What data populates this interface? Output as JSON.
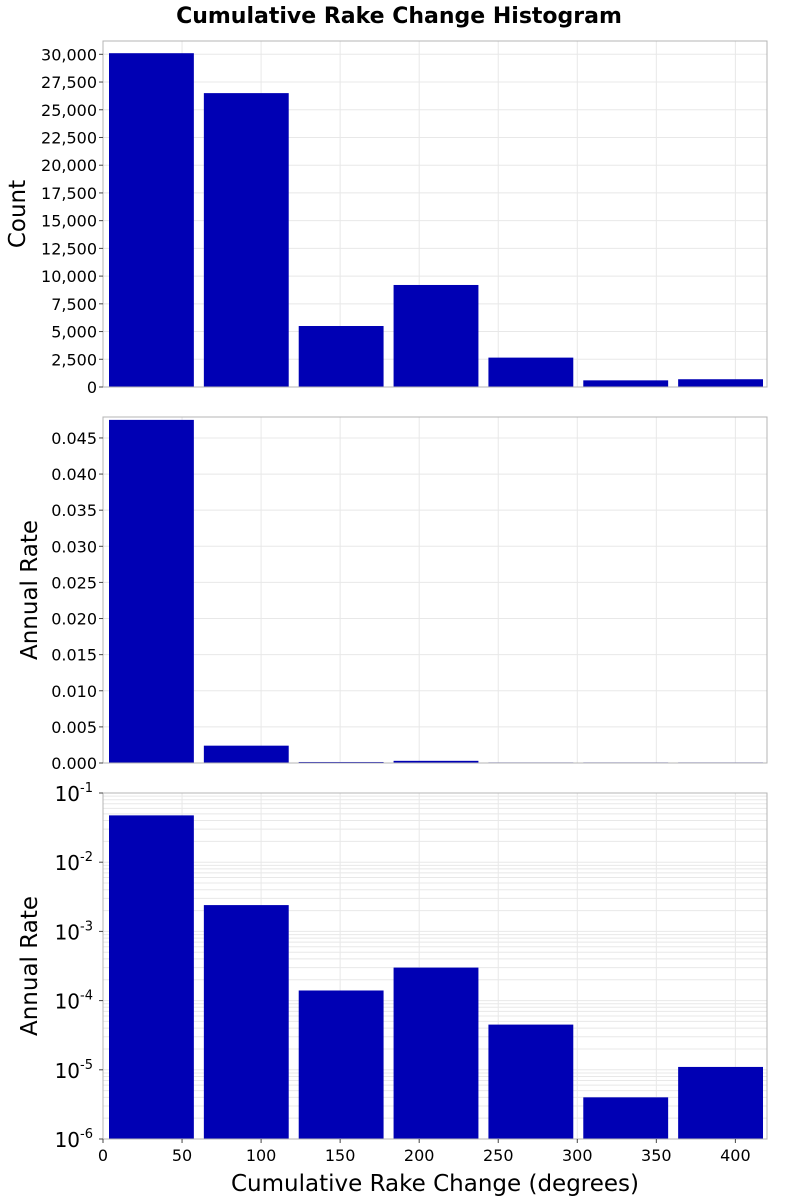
{
  "chart_title": "Cumulative Rake Change Histogram",
  "colors": {
    "bar": "#0000b4",
    "frame": "#b4b4b4",
    "grid": "#e8e8e8",
    "background": "#ffffff"
  },
  "chart_data": [
    {
      "type": "bar",
      "scale": "linear",
      "ylabel": "Count",
      "ylim": [
        0,
        31200
      ],
      "yticks": [
        0,
        2500,
        5000,
        7500,
        10000,
        12500,
        15000,
        17500,
        20000,
        22500,
        25000,
        27500,
        30000
      ],
      "ytick_labels": [
        "0",
        "2,500",
        "5,000",
        "7,500",
        "10,000",
        "12,500",
        "15,000",
        "17,500",
        "20,000",
        "22,500",
        "25,000",
        "27,500",
        "30,000"
      ],
      "bin_edges": [
        0,
        60,
        120,
        180,
        240,
        300,
        360,
        420
      ],
      "values": [
        30100,
        26500,
        5500,
        9200,
        2650,
        600,
        700
      ],
      "grid": true
    },
    {
      "type": "bar",
      "scale": "linear",
      "ylabel": "Annual Rate",
      "ylim": [
        0,
        0.0479
      ],
      "yticks": [
        0,
        0.005,
        0.01,
        0.015,
        0.02,
        0.025,
        0.03,
        0.035,
        0.04,
        0.045
      ],
      "ytick_labels": [
        "0.000",
        "0.005",
        "0.010",
        "0.015",
        "0.020",
        "0.025",
        "0.030",
        "0.035",
        "0.040",
        "0.045"
      ],
      "bin_edges": [
        0,
        60,
        120,
        180,
        240,
        300,
        360,
        420
      ],
      "values": [
        0.0475,
        0.0024,
        0.00014,
        0.0003,
        4.5e-05,
        4e-06,
        1.1e-05
      ],
      "grid": true
    },
    {
      "type": "bar",
      "scale": "log",
      "ylabel": "Annual Rate",
      "ylim": [
        1e-06,
        0.1
      ],
      "yticks": [
        1e-06,
        1e-05,
        0.0001,
        0.001,
        0.01,
        0.1
      ],
      "ytick_exponents": [
        "-6",
        "-5",
        "-4",
        "-3",
        "-2",
        "-1"
      ],
      "ytick_base": "10",
      "bin_edges": [
        0,
        60,
        120,
        180,
        240,
        300,
        360,
        420
      ],
      "values": [
        0.0475,
        0.0024,
        0.00014,
        0.0003,
        4.5e-05,
        4e-06,
        1.1e-05
      ],
      "grid": true
    }
  ],
  "x_axis": {
    "label": "Cumulative Rake Change (degrees)",
    "xlim": [
      0,
      420
    ],
    "ticks": [
      0,
      50,
      100,
      150,
      200,
      250,
      300,
      350,
      400
    ],
    "tick_labels": [
      "0",
      "50",
      "100",
      "150",
      "200",
      "250",
      "300",
      "350",
      "400"
    ]
  }
}
